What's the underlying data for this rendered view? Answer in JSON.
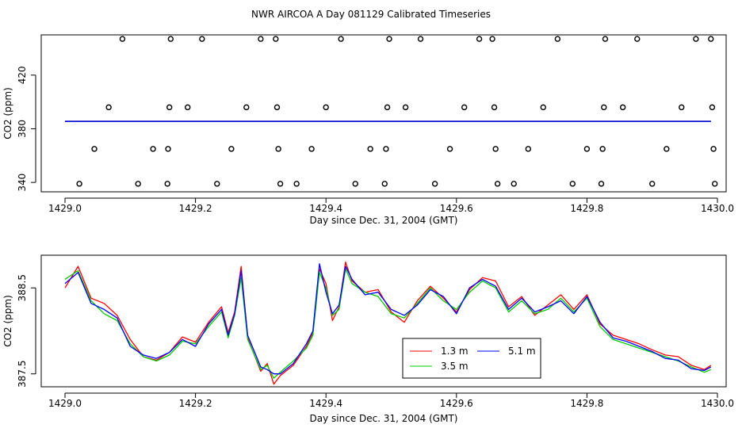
{
  "title": "NWR AIRCOA A  Day 081129  Calibrated Timeseries",
  "chart_data": [
    {
      "type": "scatter",
      "xlabel": "Day since Dec. 31, 2004 (GMT)",
      "ylabel": "CO2 (ppm)",
      "xlim": [
        1429.0,
        1430.0
      ],
      "ylim": [
        333,
        450
      ],
      "xticks": [
        "1429.0",
        "1429.2",
        "1429.4",
        "1429.6",
        "1429.8",
        "1430.0"
      ],
      "xtick_values": [
        1429.0,
        1429.2,
        1429.4,
        1429.6,
        1429.8,
        1430.0
      ],
      "yticks": [
        "340",
        "380",
        "420"
      ],
      "ytick_values": [
        340,
        380,
        420
      ],
      "points": [
        [
          1429.022,
          339
        ],
        [
          1429.045,
          365
        ],
        [
          1429.067,
          396
        ],
        [
          1429.088,
          447
        ],
        [
          1429.112,
          339
        ],
        [
          1429.135,
          365
        ],
        [
          1429.157,
          339
        ],
        [
          1429.158,
          365
        ],
        [
          1429.16,
          396
        ],
        [
          1429.162,
          447
        ],
        [
          1429.188,
          396
        ],
        [
          1429.21,
          447
        ],
        [
          1429.233,
          339
        ],
        [
          1429.255,
          365
        ],
        [
          1429.278,
          396
        ],
        [
          1429.3,
          447
        ],
        [
          1429.323,
          447
        ],
        [
          1429.325,
          396
        ],
        [
          1429.327,
          365
        ],
        [
          1429.33,
          339
        ],
        [
          1429.355,
          339
        ],
        [
          1429.378,
          365
        ],
        [
          1429.4,
          396
        ],
        [
          1429.423,
          447
        ],
        [
          1429.445,
          339
        ],
        [
          1429.468,
          365
        ],
        [
          1429.49,
          339
        ],
        [
          1429.492,
          365
        ],
        [
          1429.494,
          396
        ],
        [
          1429.497,
          447
        ],
        [
          1429.522,
          396
        ],
        [
          1429.545,
          447
        ],
        [
          1429.567,
          339
        ],
        [
          1429.59,
          365
        ],
        [
          1429.612,
          396
        ],
        [
          1429.635,
          447
        ],
        [
          1429.655,
          447
        ],
        [
          1429.658,
          396
        ],
        [
          1429.66,
          365
        ],
        [
          1429.663,
          339
        ],
        [
          1429.688,
          339
        ],
        [
          1429.71,
          365
        ],
        [
          1429.733,
          396
        ],
        [
          1429.755,
          447
        ],
        [
          1429.778,
          339
        ],
        [
          1429.8,
          365
        ],
        [
          1429.822,
          339
        ],
        [
          1429.824,
          365
        ],
        [
          1429.826,
          396
        ],
        [
          1429.828,
          447
        ],
        [
          1429.855,
          396
        ],
        [
          1429.877,
          447
        ],
        [
          1429.9,
          339
        ],
        [
          1429.922,
          365
        ],
        [
          1429.945,
          396
        ],
        [
          1429.967,
          447
        ],
        [
          1429.99,
          447
        ],
        [
          1429.992,
          396
        ],
        [
          1429.994,
          365
        ],
        [
          1429.996,
          339
        ]
      ],
      "series": [
        {
          "name": "1.3 m",
          "color": "#ff0000",
          "value": 385.5,
          "x_start": 1429.0,
          "x_end": 1429.99
        },
        {
          "name": "3.5 m",
          "color": "#00cc00",
          "value": 385.5,
          "x_start": 1429.0,
          "x_end": 1429.99
        },
        {
          "name": "5.1 m",
          "color": "#0000ff",
          "value": 385.5,
          "x_start": 1429.0,
          "x_end": 1429.99
        }
      ]
    },
    {
      "type": "line",
      "xlabel": "Day since Dec. 31, 2004 (GMT)",
      "ylabel": "CO2 (ppm)",
      "xlim": [
        1429.0,
        1430.0
      ],
      "ylim": [
        387.35,
        388.88
      ],
      "xticks": [
        "1429.0",
        "1429.2",
        "1429.4",
        "1429.6",
        "1429.8",
        "1430.0"
      ],
      "xtick_values": [
        1429.0,
        1429.2,
        1429.4,
        1429.6,
        1429.8,
        1430.0
      ],
      "yticks": [
        "387.5",
        "388.5"
      ],
      "ytick_values": [
        387.5,
        388.5
      ],
      "legend": {
        "position": "bottom-right",
        "entries": [
          "1.3 m",
          "3.5 m",
          "5.1 m"
        ]
      },
      "series": [
        {
          "name": "1.3 m",
          "color": "#ff0000",
          "x": [
            1429.0,
            1429.02,
            1429.04,
            1429.06,
            1429.08,
            1429.1,
            1429.12,
            1429.14,
            1429.16,
            1429.18,
            1429.2,
            1429.22,
            1429.24,
            1429.25,
            1429.26,
            1429.27,
            1429.28,
            1429.3,
            1429.31,
            1429.32,
            1429.33,
            1429.35,
            1429.37,
            1429.38,
            1429.39,
            1429.4,
            1429.41,
            1429.42,
            1429.43,
            1429.44,
            1429.46,
            1429.48,
            1429.5,
            1429.52,
            1429.54,
            1429.56,
            1429.58,
            1429.6,
            1429.62,
            1429.64,
            1429.66,
            1429.68,
            1429.7,
            1429.72,
            1429.74,
            1429.76,
            1429.78,
            1429.8,
            1429.82,
            1429.84,
            1429.86,
            1429.88,
            1429.9,
            1429.92,
            1429.94,
            1429.96,
            1429.98,
            1429.99
          ],
          "values": [
            388.5,
            388.75,
            388.38,
            388.32,
            388.18,
            387.9,
            387.7,
            387.66,
            387.75,
            387.93,
            387.87,
            388.1,
            388.28,
            387.98,
            388.22,
            388.75,
            387.92,
            387.53,
            387.62,
            387.38,
            387.48,
            387.6,
            387.82,
            387.98,
            388.72,
            388.55,
            388.12,
            388.28,
            388.8,
            388.58,
            388.45,
            388.48,
            388.22,
            388.1,
            388.35,
            388.52,
            388.38,
            388.22,
            388.48,
            388.62,
            388.58,
            388.28,
            388.4,
            388.18,
            388.3,
            388.42,
            388.25,
            388.42,
            388.08,
            387.95,
            387.9,
            387.85,
            387.78,
            387.72,
            387.7,
            387.6,
            387.55,
            387.6
          ]
        },
        {
          "name": "3.5 m",
          "color": "#00cc00",
          "x": [
            1429.0,
            1429.02,
            1429.04,
            1429.06,
            1429.08,
            1429.1,
            1429.12,
            1429.14,
            1429.16,
            1429.18,
            1429.2,
            1429.22,
            1429.24,
            1429.25,
            1429.26,
            1429.27,
            1429.28,
            1429.3,
            1429.31,
            1429.32,
            1429.33,
            1429.35,
            1429.37,
            1429.38,
            1429.39,
            1429.4,
            1429.41,
            1429.42,
            1429.43,
            1429.44,
            1429.46,
            1429.48,
            1429.5,
            1429.52,
            1429.54,
            1429.56,
            1429.58,
            1429.6,
            1429.62,
            1429.64,
            1429.66,
            1429.68,
            1429.7,
            1429.72,
            1429.74,
            1429.76,
            1429.78,
            1429.8,
            1429.82,
            1429.84,
            1429.86,
            1429.88,
            1429.9,
            1429.92,
            1429.94,
            1429.96,
            1429.98,
            1429.99
          ],
          "values": [
            388.6,
            388.7,
            388.35,
            388.2,
            388.12,
            387.85,
            387.7,
            387.65,
            387.72,
            387.88,
            387.85,
            388.05,
            388.22,
            387.92,
            388.18,
            388.62,
            387.9,
            387.55,
            387.6,
            387.45,
            387.52,
            387.65,
            387.8,
            387.95,
            388.68,
            388.5,
            388.18,
            388.25,
            388.72,
            388.55,
            388.45,
            388.4,
            388.2,
            388.15,
            388.32,
            388.5,
            388.35,
            388.25,
            388.45,
            388.58,
            388.5,
            388.22,
            388.35,
            388.2,
            388.25,
            388.38,
            388.22,
            388.38,
            388.05,
            387.9,
            387.85,
            387.8,
            387.75,
            387.7,
            387.65,
            387.58,
            387.52,
            387.55
          ]
        },
        {
          "name": "5.1 m",
          "color": "#0000ff",
          "x": [
            1429.0,
            1429.02,
            1429.04,
            1429.06,
            1429.08,
            1429.1,
            1429.12,
            1429.14,
            1429.16,
            1429.18,
            1429.2,
            1429.22,
            1429.24,
            1429.25,
            1429.26,
            1429.27,
            1429.28,
            1429.3,
            1429.31,
            1429.32,
            1429.33,
            1429.35,
            1429.37,
            1429.38,
            1429.39,
            1429.4,
            1429.41,
            1429.42,
            1429.43,
            1429.44,
            1429.46,
            1429.48,
            1429.5,
            1429.52,
            1429.54,
            1429.56,
            1429.58,
            1429.6,
            1429.62,
            1429.64,
            1429.66,
            1429.68,
            1429.7,
            1429.72,
            1429.74,
            1429.76,
            1429.78,
            1429.8,
            1429.82,
            1429.84,
            1429.86,
            1429.88,
            1429.9,
            1429.92,
            1429.94,
            1429.96,
            1429.98,
            1429.99
          ],
          "values": [
            388.55,
            388.68,
            388.32,
            388.25,
            388.15,
            387.82,
            387.72,
            387.68,
            387.75,
            387.9,
            387.82,
            388.08,
            388.25,
            387.95,
            388.2,
            388.7,
            387.95,
            387.58,
            387.55,
            387.5,
            387.5,
            387.62,
            387.85,
            388.0,
            388.78,
            388.45,
            388.2,
            388.3,
            388.75,
            388.6,
            388.42,
            388.45,
            388.25,
            388.18,
            388.3,
            388.48,
            388.4,
            388.2,
            388.5,
            388.6,
            388.52,
            388.25,
            388.38,
            388.22,
            388.28,
            388.35,
            388.2,
            388.4,
            388.1,
            387.92,
            387.88,
            387.82,
            387.76,
            387.68,
            387.66,
            387.56,
            387.54,
            387.58
          ]
        }
      ]
    }
  ]
}
